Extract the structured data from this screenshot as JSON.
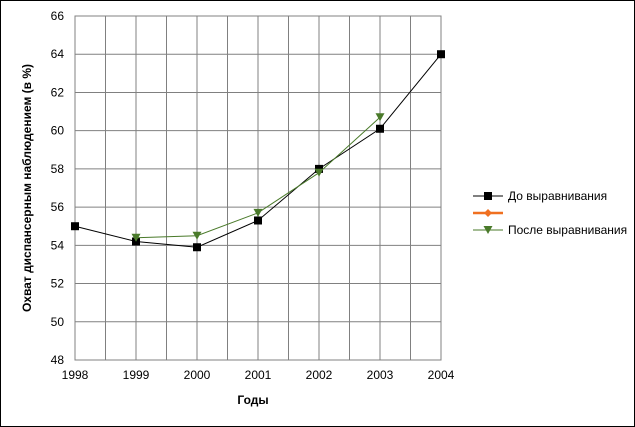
{
  "chart_data": {
    "type": "line",
    "x": [
      1998,
      1999,
      2000,
      2001,
      2002,
      2003,
      2004
    ],
    "x_tick_labels": [
      "1998",
      "1999",
      "2000",
      "2001",
      "2002",
      "2003",
      "2004"
    ],
    "y_tick_labels": [
      "48",
      "50",
      "52",
      "54",
      "56",
      "58",
      "60",
      "62",
      "64",
      "66"
    ],
    "xlabel": "Годы",
    "ylabel": "Охват диспансерным наблюдением (в %)",
    "ylim": [
      48,
      66
    ],
    "xlim": [
      1998,
      2004
    ],
    "grid": true,
    "legend_position": "right",
    "series": [
      {
        "name": "До выравнивания",
        "color": "#000000",
        "marker": "square",
        "values": [
          55.0,
          54.2,
          53.9,
          55.3,
          58.0,
          60.1,
          64.0
        ]
      },
      {
        "name": "",
        "color": "#f07020",
        "marker": "diamond",
        "values": [
          null,
          null,
          null,
          null,
          null,
          null,
          null
        ]
      },
      {
        "name": "После выравнивания",
        "color": "#4a7a2a",
        "marker": "triangle-down",
        "values": [
          null,
          54.4,
          54.5,
          55.7,
          57.8,
          60.7,
          null
        ]
      }
    ]
  }
}
